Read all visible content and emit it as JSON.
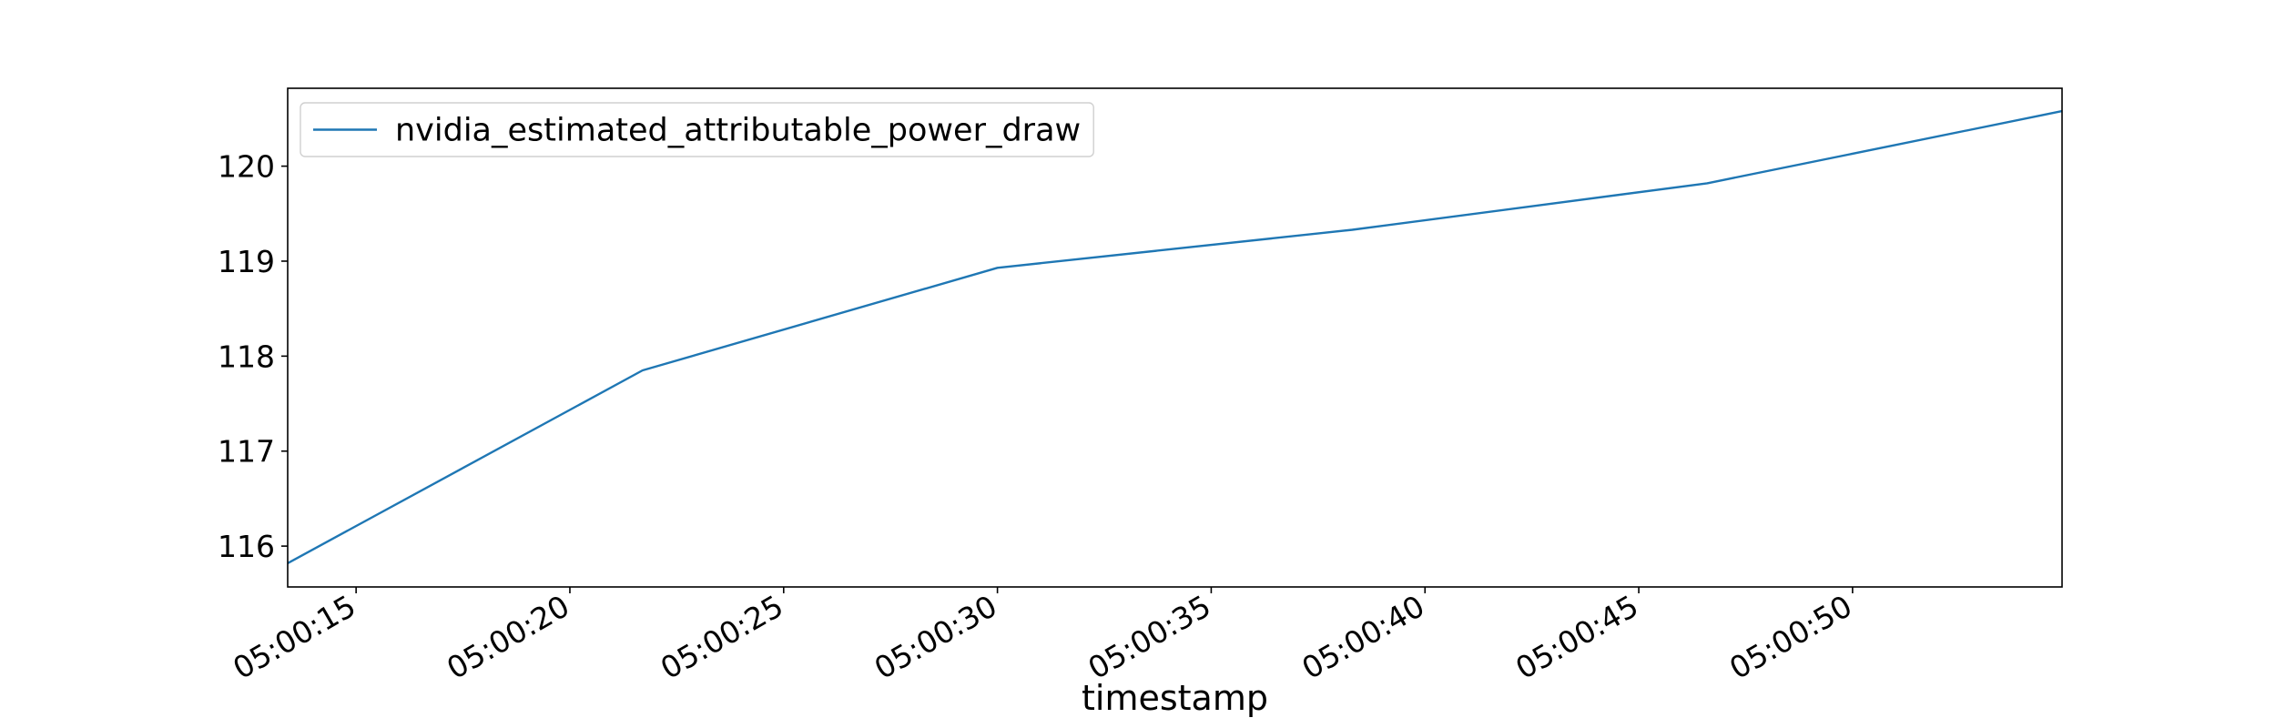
{
  "chart_data": {
    "type": "line",
    "title": "",
    "xlabel": "timestamp",
    "ylabel": "",
    "x_ticks": [
      "05:00:15",
      "05:00:20",
      "05:00:25",
      "05:00:30",
      "05:00:35",
      "05:00:40",
      "05:00:45",
      "05:00:50"
    ],
    "y_ticks": [
      116,
      117,
      118,
      119,
      120
    ],
    "xlim": [
      "05:00:13.4",
      "05:00:54.9"
    ],
    "ylim": [
      115.57,
      120.82
    ],
    "grid": false,
    "legend": {
      "position": "top-left",
      "entries": [
        "nvidia_estimated_attributable_power_draw"
      ]
    },
    "series": [
      {
        "name": "nvidia_estimated_attributable_power_draw",
        "color": "#1f77b4",
        "x": [
          "05:00:13.4",
          "05:00:21.7",
          "05:00:30.0",
          "05:00:38.3",
          "05:00:46.6",
          "05:00:54.9"
        ],
        "y": [
          115.82,
          117.85,
          118.93,
          119.33,
          119.82,
          120.58
        ]
      }
    ]
  }
}
